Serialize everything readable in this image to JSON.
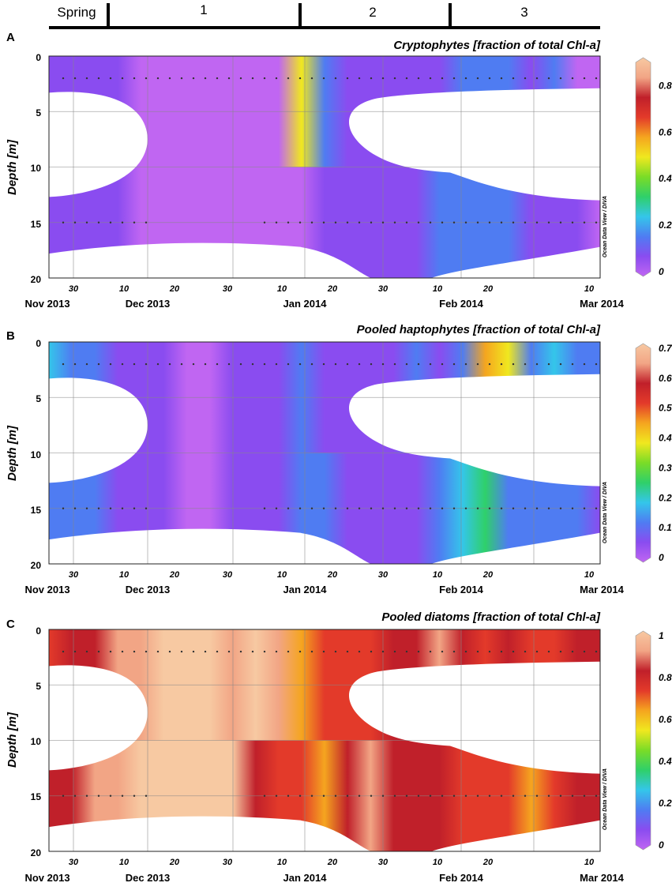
{
  "periods": [
    {
      "label": "Spring",
      "start": 0,
      "end": 0.148
    },
    {
      "label": "1",
      "start": 0.148,
      "end": 0.565
    },
    {
      "label": "2",
      "start": 0.565,
      "end": 0.84
    },
    {
      "label": "3",
      "start": 0.84,
      "end": 1.0
    }
  ],
  "colors": {
    "scale": [
      "#c066f2",
      "#8a4cf0",
      "#4f7cf2",
      "#34c6ea",
      "#2fd06a",
      "#7adc27",
      "#f0e81f",
      "#f5a51f",
      "#e33a2a",
      "#c0202a",
      "#f2a585",
      "#f7c9a2"
    ]
  },
  "chart_data": [
    {
      "type": "heatmap",
      "panel_letter": "A",
      "title": "Cryptophytes [fraction of total Chl-a]",
      "ylabel": "Depth [m]",
      "credit": "Ocean Data View / DIVA",
      "y_ticks": [
        "0",
        "5",
        "10",
        "15",
        "20"
      ],
      "ylim": [
        0,
        20
      ],
      "x_month_labels": [
        "Nov 2013",
        "Dec 2013",
        "Jan 2014",
        "Feb 2014",
        "Mar 2014"
      ],
      "x_day_labels": [
        "30",
        "10",
        "20",
        "30",
        "10",
        "20",
        "30",
        "10",
        "20",
        "10"
      ],
      "colorbar_ticks": [
        "0",
        "0.2",
        "0.4",
        "0.6",
        "0.8"
      ],
      "colorbar_range": [
        0,
        0.9
      ],
      "surface_values": [
        0.05,
        0.08,
        0.12,
        0.05,
        0.0,
        0.0,
        0.0,
        0.0,
        0.0,
        0.0,
        0.02,
        0.45,
        0.2,
        0.05,
        0.1,
        0.05,
        0.12,
        0.05,
        0.2,
        0.15,
        0.2,
        0.05,
        0.15,
        0.02,
        0.0
      ],
      "bottom_values": [
        0.05,
        0.1,
        0.08,
        0.05,
        0.0,
        0.0,
        0.0,
        0.0,
        0.0,
        0.0,
        0.02,
        0.03,
        0.05,
        0.05,
        0.1,
        0.08,
        0.12,
        0.2,
        0.15,
        0.15,
        0.2,
        0.1,
        0.05,
        0.05,
        0.03
      ]
    },
    {
      "type": "heatmap",
      "panel_letter": "B",
      "title": "Pooled haptophytes [fraction of total Chl-a]",
      "ylabel": "Depth [m]",
      "credit": "Ocean Data View / DIVA",
      "y_ticks": [
        "0",
        "5",
        "10",
        "15",
        "20"
      ],
      "ylim": [
        0,
        20
      ],
      "x_month_labels": [
        "Nov 2013",
        "Dec 2013",
        "Jan 2014",
        "Feb 2014",
        "Mar 2014"
      ],
      "x_day_labels": [
        "30",
        "10",
        "20",
        "30",
        "10",
        "20",
        "30",
        "10",
        "20",
        "10"
      ],
      "colorbar_ticks": [
        "0",
        "0.1",
        "0.2",
        "0.3",
        "0.4",
        "0.5",
        "0.6",
        "0.7"
      ],
      "colorbar_range": [
        0,
        0.7
      ],
      "surface_values": [
        0.2,
        0.12,
        0.1,
        0.08,
        0.05,
        0.05,
        0.03,
        0.03,
        0.04,
        0.05,
        0.07,
        0.12,
        0.08,
        0.06,
        0.06,
        0.08,
        0.1,
        0.08,
        0.12,
        0.45,
        0.4,
        0.15,
        0.2,
        0.1,
        0.1
      ],
      "bottom_values": [
        0.15,
        0.12,
        0.1,
        0.08,
        0.05,
        0.04,
        0.03,
        0.03,
        0.05,
        0.07,
        0.09,
        0.12,
        0.12,
        0.08,
        0.06,
        0.06,
        0.08,
        0.1,
        0.2,
        0.25,
        0.15,
        0.12,
        0.12,
        0.1,
        0.08
      ]
    },
    {
      "type": "heatmap",
      "panel_letter": "C",
      "title": "Pooled diatoms [fraction of total Chl-a]",
      "ylabel": "Depth [m]",
      "credit": "Ocean Data View / DIVA",
      "y_ticks": [
        "0",
        "5",
        "10",
        "15",
        "20"
      ],
      "ylim": [
        0,
        20
      ],
      "x_month_labels": [
        "Nov 2013",
        "Dec 2013",
        "Jan 2014",
        "Feb 2014",
        "Mar 2014"
      ],
      "x_day_labels": [
        "30",
        "10",
        "20",
        "30",
        "10",
        "20",
        "30",
        "10",
        "20",
        "10"
      ],
      "colorbar_ticks": [
        "0",
        "0.2",
        "0.4",
        "0.6",
        "0.8",
        "1"
      ],
      "colorbar_range": [
        0,
        1
      ],
      "surface_values": [
        0.7,
        0.8,
        0.85,
        0.9,
        0.95,
        0.98,
        0.98,
        0.97,
        0.95,
        1.0,
        0.95,
        0.6,
        0.7,
        0.75,
        0.75,
        0.8,
        0.85,
        0.9,
        0.8,
        0.75,
        0.8,
        0.7,
        0.75,
        0.8,
        0.82
      ],
      "bottom_values": [
        0.78,
        0.85,
        0.88,
        0.95,
        0.98,
        0.99,
        1.0,
        1.0,
        0.98,
        0.82,
        0.75,
        0.7,
        0.65,
        0.85,
        0.9,
        0.8,
        0.85,
        0.78,
        0.72,
        0.7,
        0.7,
        0.65,
        0.72,
        0.78,
        0.8
      ]
    }
  ]
}
